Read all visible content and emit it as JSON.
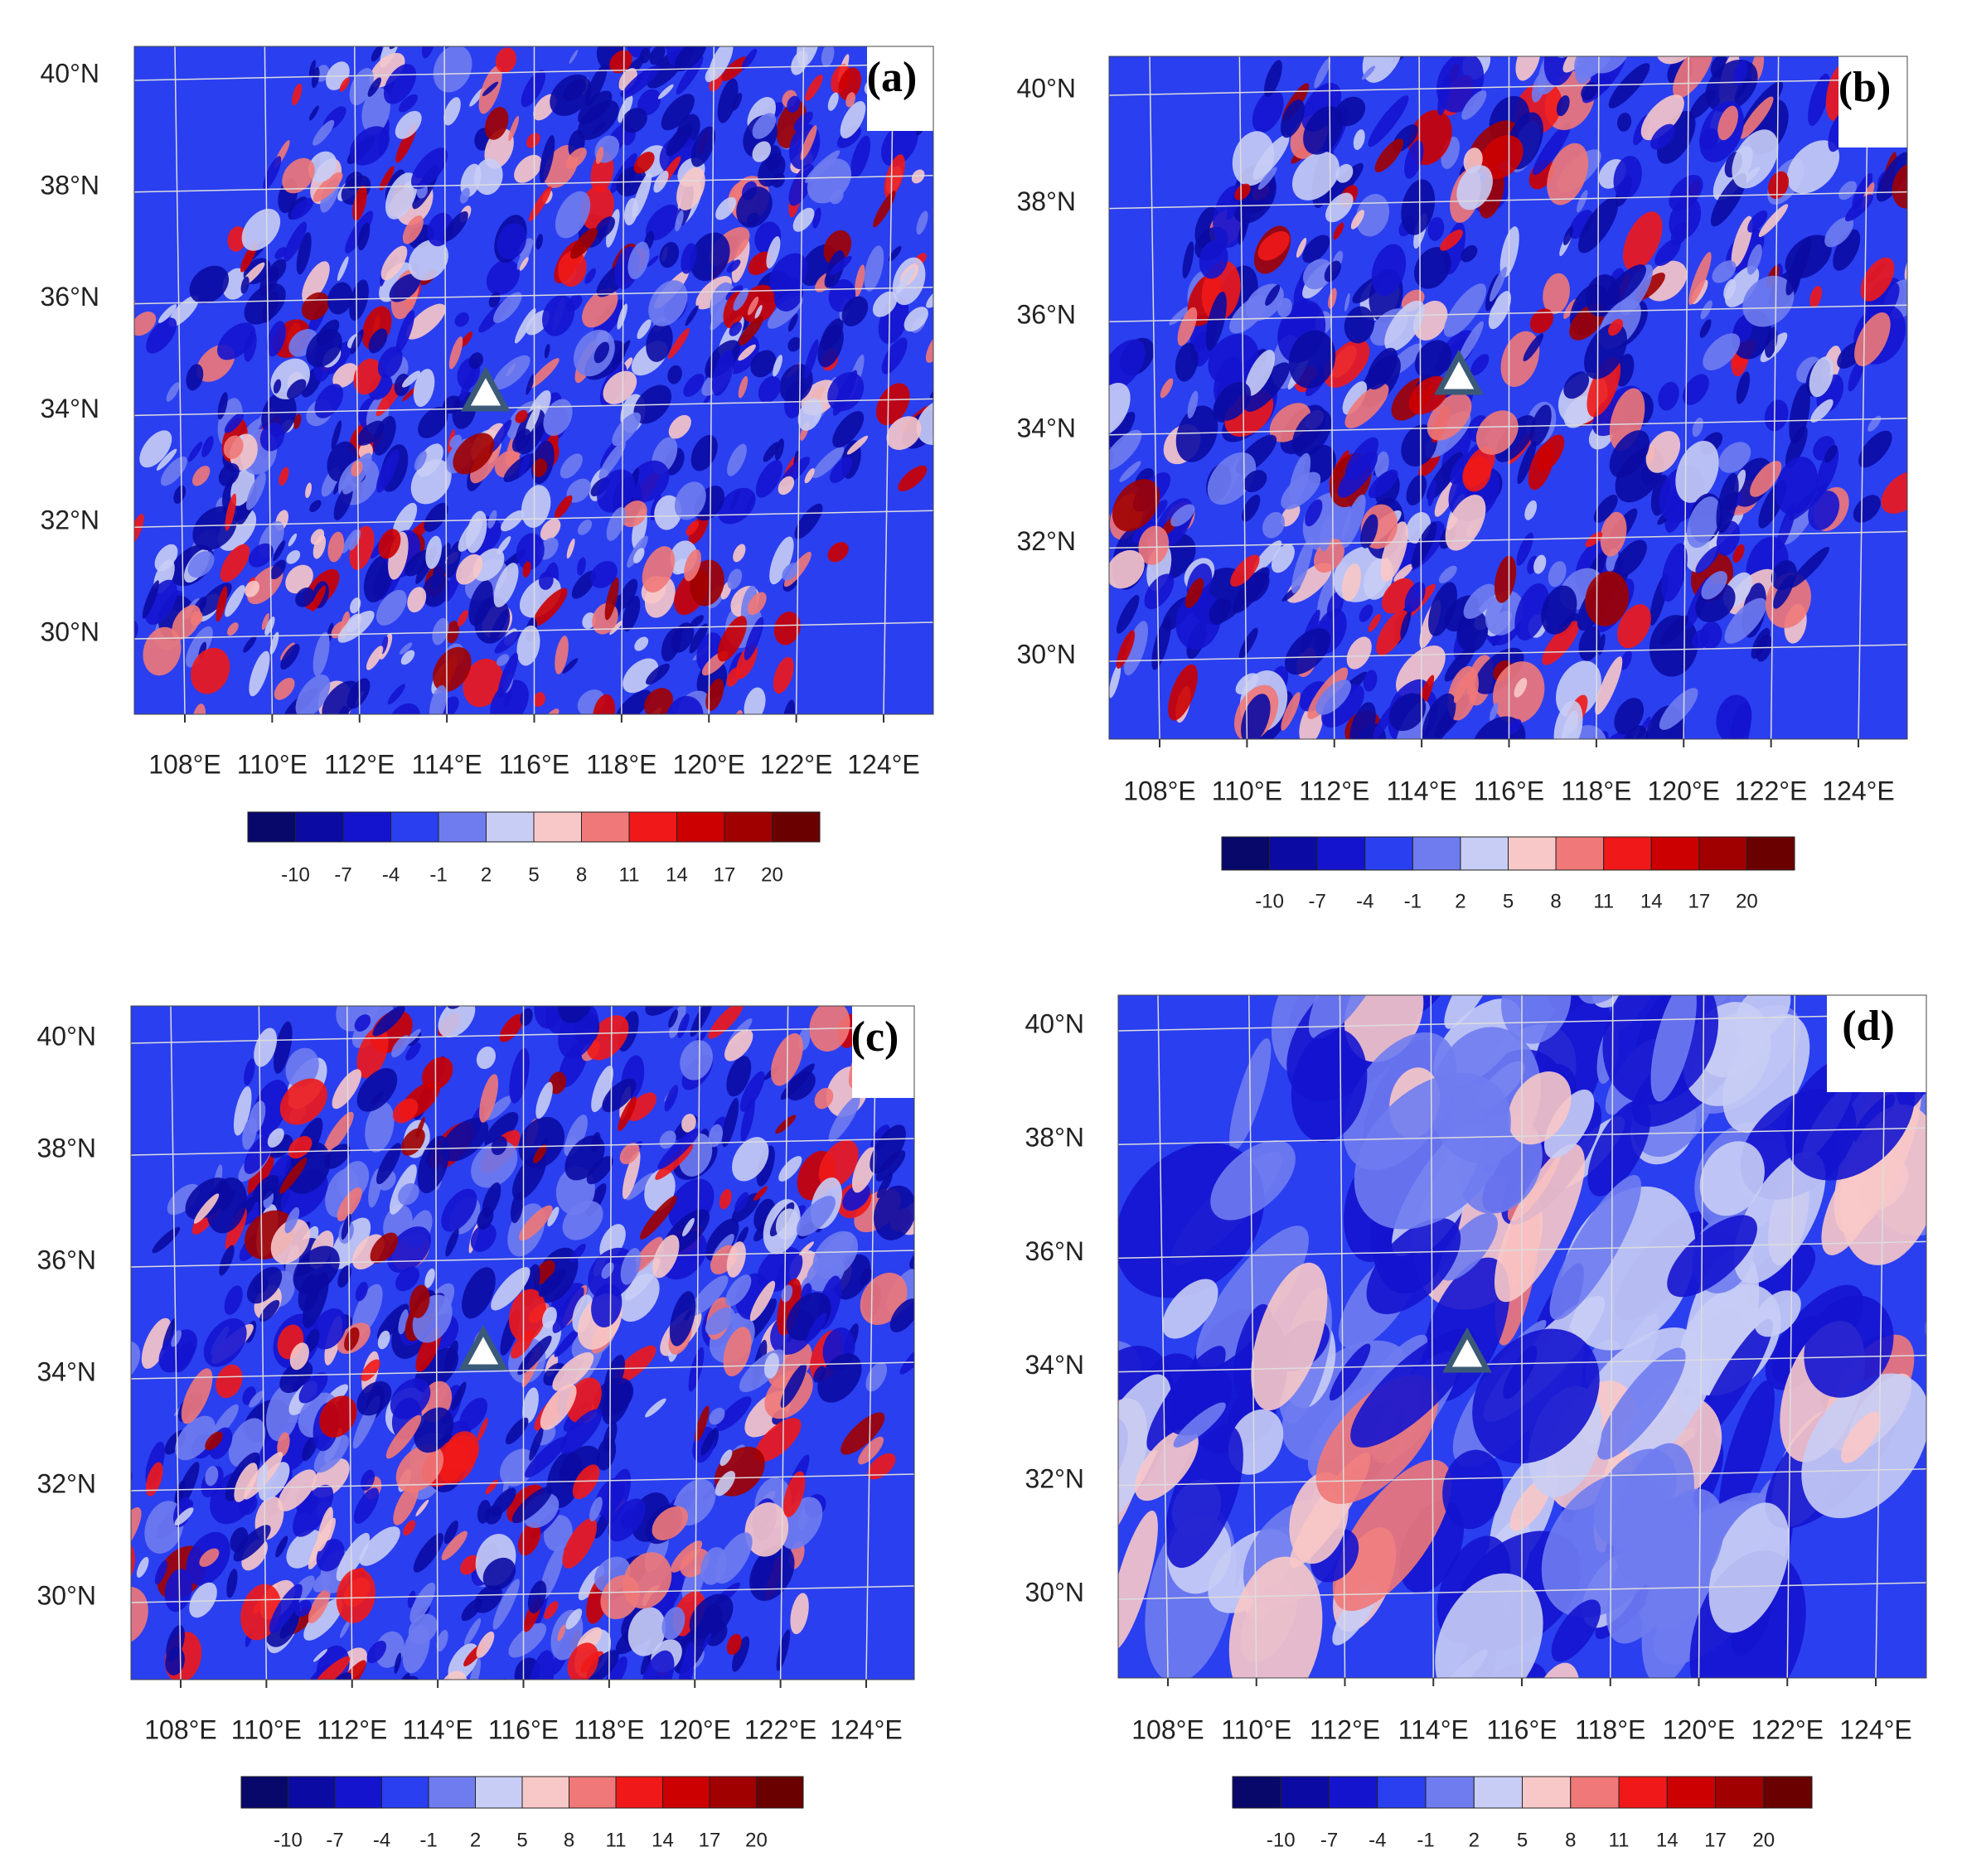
{
  "panels": [
    {
      "label": "(a)"
    },
    {
      "label": "(b)"
    },
    {
      "label": "(c)"
    },
    {
      "label": "(d)"
    }
  ],
  "lat_labels": [
    "40°N",
    "38°N",
    "36°N",
    "34°N",
    "32°N",
    "30°N"
  ],
  "lon_labels": [
    "108°E",
    "110°E",
    "112°E",
    "114°E",
    "116°E",
    "118°E",
    "120°E",
    "122°E",
    "124°E"
  ],
  "colorbar": {
    "levels": [
      -10,
      -7,
      -4,
      -1,
      2,
      5,
      8,
      11,
      14,
      17,
      20
    ],
    "colors": [
      "#08086b",
      "#0b0ba3",
      "#1414cf",
      "#2a3ff0",
      "#6f7cf0",
      "#c8cdf5",
      "#f8c8c8",
      "#f07878",
      "#f01818",
      "#cc0000",
      "#a00000",
      "#6a0000"
    ]
  }
}
